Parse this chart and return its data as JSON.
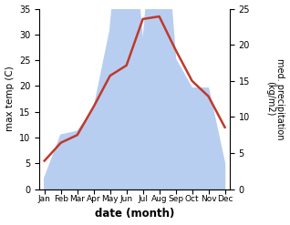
{
  "months": [
    "Jan",
    "Feb",
    "Mar",
    "Apr",
    "May",
    "Jun",
    "Jul",
    "Aug",
    "Sep",
    "Oct",
    "Nov",
    "Dec"
  ],
  "month_positions": [
    0,
    1,
    2,
    3,
    4,
    5,
    6,
    7,
    8,
    9,
    10,
    11
  ],
  "temperature": [
    5.5,
    9.0,
    10.5,
    16.0,
    22.0,
    24.0,
    33.0,
    33.5,
    27.0,
    21.0,
    18.0,
    12.0
  ],
  "precipitation": [
    1.5,
    7.5,
    8.0,
    11.0,
    22.0,
    47.0,
    20.0,
    47.0,
    18.0,
    14.0,
    14.0,
    3.5
  ],
  "temp_ylim": [
    0,
    35
  ],
  "precip_ylim": [
    0,
    25
  ],
  "temp_color": "#c0392b",
  "precip_color": "#b8cef0",
  "title": "",
  "xlabel": "date (month)",
  "ylabel_left": "max temp (C)",
  "ylabel_right": "med. precipitation\n(kg/m2)",
  "linewidth": 1.8,
  "background_color": "#ffffff"
}
